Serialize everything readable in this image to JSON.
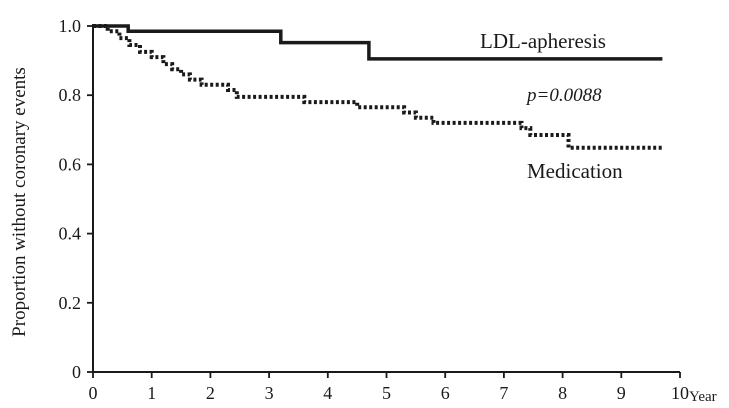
{
  "chart_data": {
    "type": "line",
    "subtype": "kaplan-meier",
    "title": "",
    "xlabel": "Year",
    "ylabel": "Proportion without coronary events",
    "xlim": [
      0,
      10
    ],
    "ylim": [
      0,
      1.0
    ],
    "x_ticks": [
      0,
      1,
      2,
      3,
      4,
      5,
      6,
      7,
      8,
      9,
      10
    ],
    "y_ticks": [
      0,
      0.2,
      0.4,
      0.6,
      0.8,
      1.0
    ],
    "x_tick_labels": [
      "0",
      "1",
      "2",
      "3",
      "4",
      "5",
      "6",
      "7",
      "8",
      "9",
      "10"
    ],
    "y_tick_labels": [
      "0",
      "0.2",
      "0.4",
      "0.6",
      "0.8",
      "1.0"
    ],
    "grid": false,
    "legend": "none (series labeled directly on plot)",
    "annotations": [
      "p=0.0088"
    ],
    "series": [
      {
        "name": "LDL-apheresis",
        "line_style": "solid",
        "color": "#1a1a1a",
        "points": [
          [
            0,
            1.0
          ],
          [
            0.6,
            1.0
          ],
          [
            0.6,
            0.985
          ],
          [
            3.2,
            0.985
          ],
          [
            3.2,
            0.952
          ],
          [
            4.7,
            0.952
          ],
          [
            4.7,
            0.905
          ],
          [
            9.7,
            0.905
          ]
        ]
      },
      {
        "name": "Medication",
        "line_style": "dotted",
        "color": "#1a1a1a",
        "points": [
          [
            0,
            1.0
          ],
          [
            0.25,
            1.0
          ],
          [
            0.25,
            0.985
          ],
          [
            0.45,
            0.985
          ],
          [
            0.45,
            0.965
          ],
          [
            0.62,
            0.965
          ],
          [
            0.62,
            0.945
          ],
          [
            0.8,
            0.945
          ],
          [
            0.8,
            0.925
          ],
          [
            1.0,
            0.925
          ],
          [
            1.0,
            0.91
          ],
          [
            1.2,
            0.91
          ],
          [
            1.2,
            0.89
          ],
          [
            1.35,
            0.89
          ],
          [
            1.35,
            0.875
          ],
          [
            1.5,
            0.875
          ],
          [
            1.5,
            0.86
          ],
          [
            1.65,
            0.86
          ],
          [
            1.65,
            0.845
          ],
          [
            1.85,
            0.845
          ],
          [
            1.85,
            0.83
          ],
          [
            2.3,
            0.83
          ],
          [
            2.3,
            0.815
          ],
          [
            2.45,
            0.815
          ],
          [
            2.45,
            0.795
          ],
          [
            3.6,
            0.795
          ],
          [
            3.6,
            0.78
          ],
          [
            4.5,
            0.78
          ],
          [
            4.5,
            0.765
          ],
          [
            5.3,
            0.765
          ],
          [
            5.3,
            0.75
          ],
          [
            5.5,
            0.75
          ],
          [
            5.5,
            0.735
          ],
          [
            5.8,
            0.735
          ],
          [
            5.8,
            0.72
          ],
          [
            7.3,
            0.72
          ],
          [
            7.3,
            0.705
          ],
          [
            7.45,
            0.705
          ],
          [
            7.45,
            0.685
          ],
          [
            8.1,
            0.685
          ],
          [
            8.1,
            0.648
          ],
          [
            9.7,
            0.648
          ]
        ]
      }
    ]
  }
}
